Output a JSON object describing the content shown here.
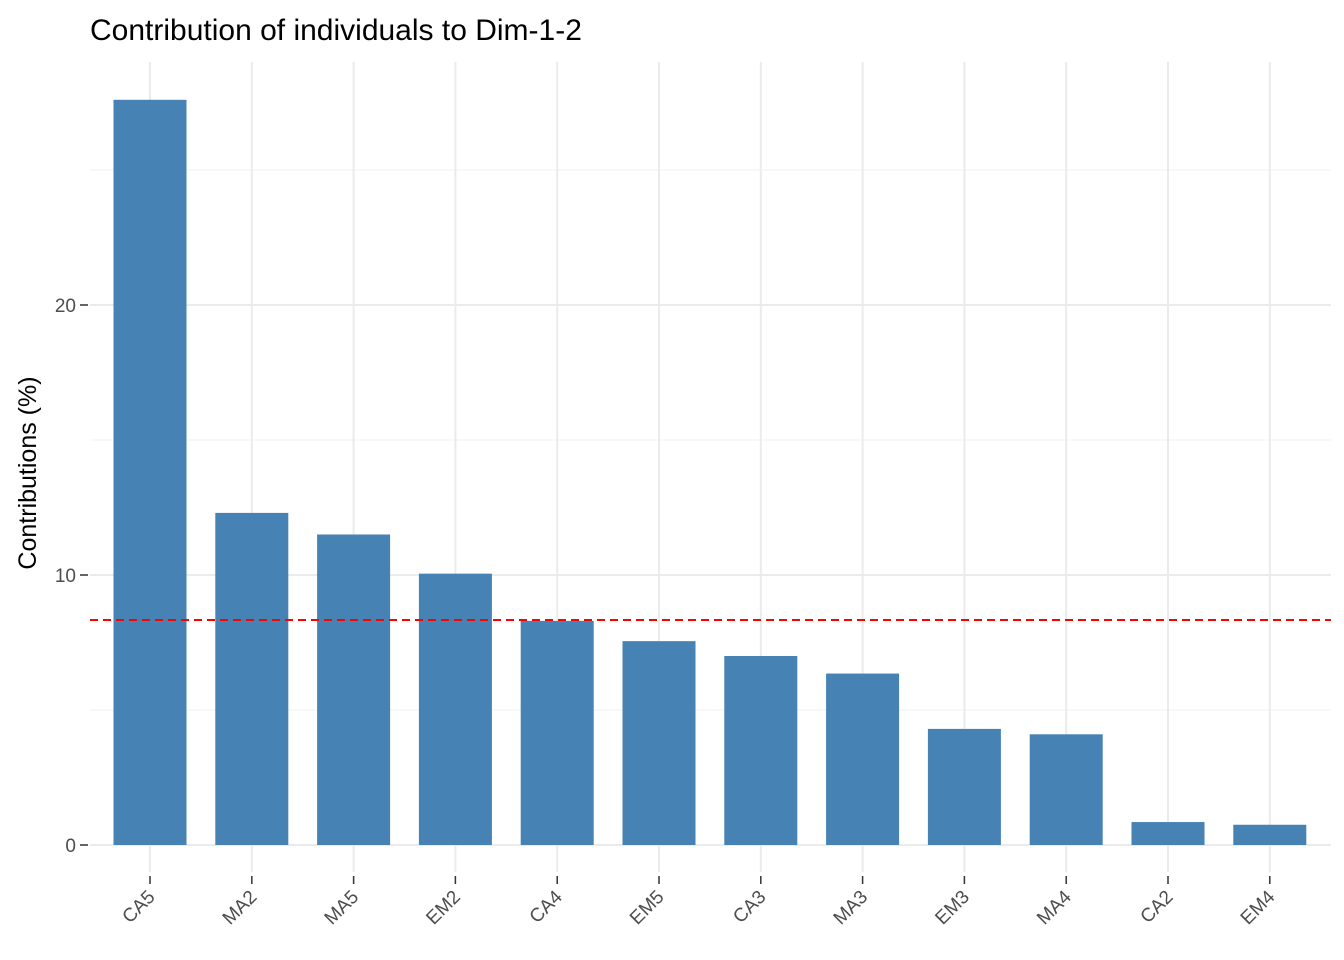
{
  "chart_data": {
    "type": "bar",
    "title": "Contribution of individuals to Dim-1-2",
    "xlabel": "",
    "ylabel": "Contributions (%)",
    "categories": [
      "CA5",
      "MA2",
      "MA5",
      "EM2",
      "CA4",
      "EM5",
      "CA3",
      "MA3",
      "EM3",
      "MA4",
      "CA2",
      "EM4"
    ],
    "values": [
      27.6,
      12.3,
      11.5,
      10.05,
      8.3,
      7.55,
      7.0,
      6.35,
      4.3,
      4.1,
      0.85,
      0.75
    ],
    "ylim": [
      -1.0,
      29.0
    ],
    "yticks": [
      0,
      10,
      20
    ],
    "reference_line": {
      "value": 8.333,
      "style": "dashed",
      "color": "#ff0000"
    },
    "bar_color": "#4682b4",
    "grid": true,
    "legend": "none"
  }
}
